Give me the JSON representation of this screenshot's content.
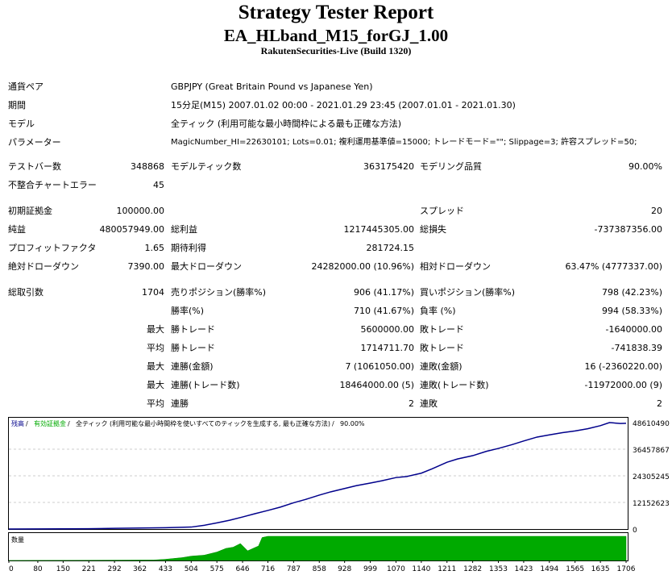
{
  "header": {
    "title": "Strategy Tester Report",
    "ea_name": "EA_HLband_M15_forGJ_1.00",
    "server": "RakutenSecurities-Live (Build 1320)"
  },
  "settings": {
    "symbol_label": "通貨ペア",
    "symbol_value": "GBPJPY (Great Britain Pound vs Japanese Yen)",
    "period_label": "期間",
    "period_value": "15分足(M15) 2007.01.02 00:00 - 2021.01.29 23:45 (2007.01.01 - 2021.01.30)",
    "model_label": "モデル",
    "model_value": "全ティック (利用可能な最小時間枠による最も正確な方法)",
    "params_label": "パラメーター",
    "params_value": "MagicNumber_HI=22630101; Lots=0.01; 複利運用基準値=15000; トレードモード=\"\"; Slippage=3; 許容スプレッド=50;"
  },
  "quality": {
    "bars_label": "テストバー数",
    "bars_value": "348868",
    "ticks_label": "モデルティック数",
    "ticks_value": "363175420",
    "quality_label": "モデリング品質",
    "quality_value": "90.00%",
    "errors_label": "不整合チャートエラー",
    "errors_value": "45"
  },
  "results": {
    "deposit_label": "初期証拠金",
    "deposit_value": "100000.00",
    "spread_label": "スプレッド",
    "spread_value": "20",
    "net_label": "純益",
    "net_value": "480057949.00",
    "gross_profit_label": "総利益",
    "gross_profit_value": "1217445305.00",
    "gross_loss_label": "総損失",
    "gross_loss_value": "-737387356.00",
    "pf_label": "プロフィットファクタ",
    "pf_value": "1.65",
    "expected_label": "期待利得",
    "expected_value": "281724.15",
    "abs_dd_label": "絶対ドローダウン",
    "abs_dd_value": "7390.00",
    "max_dd_label": "最大ドローダウン",
    "max_dd_value": "24282000.00 (10.96%)",
    "rel_dd_label": "相対ドローダウン",
    "rel_dd_value": "63.47% (4777337.00)"
  },
  "trades": {
    "total_label": "総取引数",
    "total_value": "1704",
    "short_label": "売りポジション(勝率%)",
    "short_value": "906 (41.17%)",
    "long_label": "買いポジション(勝率%)",
    "long_value": "798 (42.23%)",
    "winrate_label": "勝率(%)",
    "winrate_value": "710 (41.67%)",
    "lossrate_label": "負率 (%)",
    "lossrate_value": "994 (58.33%)",
    "row_max": "最大",
    "row_avg": "平均",
    "largest_win_label": "勝トレード",
    "largest_win_value": "5600000.00",
    "largest_loss_label": "敗トレード",
    "largest_loss_value": "-1640000.00",
    "avg_win_label": "勝トレード",
    "avg_win_value": "1714711.70",
    "avg_loss_label": "敗トレード",
    "avg_loss_value": "-741838.39",
    "max_cons_win_money_label": "連勝(金額)",
    "max_cons_win_money_value": "7 (1061050.00)",
    "max_cons_loss_money_label": "連敗(金額)",
    "max_cons_loss_money_value": "16 (-2360220.00)",
    "max_cons_profit_label": "連勝(トレード数)",
    "max_cons_profit_value": "18464000.00 (5)",
    "max_cons_loss_label": "連敗(トレード数)",
    "max_cons_loss_value": "-11972000.00 (9)",
    "avg_cons_win_label": "連勝",
    "avg_cons_win_value": "2",
    "avg_cons_loss_label": "連敗",
    "avg_cons_loss_value": "2"
  },
  "chart_data": {
    "type": "line",
    "legend": [
      {
        "text": "残高",
        "color": "#00008b"
      },
      {
        "text": "有効証拠金",
        "color": "#00aa00"
      },
      {
        "text": "全ティック (利用可能な最小時間枠を使いすべてのティックを生成する, 最も正確な方法)",
        "color": "#000000"
      },
      {
        "text": "90.00%",
        "color": "#000000"
      }
    ],
    "volume_label": "数量",
    "y_ticks": [
      "48610490",
      "36457867",
      "24305245",
      "12152623",
      "0"
    ],
    "ylim": [
      0,
      48610490
    ],
    "x_ticks": [
      "0",
      "80",
      "150",
      "221",
      "292",
      "362",
      "433",
      "504",
      "575",
      "646",
      "716",
      "787",
      "858",
      "928",
      "999",
      "1070",
      "1140",
      "1211",
      "1282",
      "1353",
      "1423",
      "1494",
      "1565",
      "1635",
      "1706"
    ],
    "balance_series": {
      "x": [
        0,
        80,
        150,
        221,
        292,
        362,
        433,
        504,
        540,
        575,
        610,
        646,
        680,
        716,
        750,
        787,
        820,
        858,
        890,
        928,
        960,
        999,
        1030,
        1070,
        1100,
        1140,
        1170,
        1211,
        1240,
        1282,
        1320,
        1353,
        1390,
        1423,
        1460,
        1494,
        1530,
        1565,
        1600,
        1635,
        1660,
        1690,
        1706
      ],
      "y": [
        0,
        50000,
        80000,
        150000,
        300000,
        450000,
        600000,
        900000,
        1700000,
        2800000,
        4000000,
        5500000,
        7000000,
        8500000,
        10000000,
        12000000,
        13500000,
        15500000,
        17000000,
        18500000,
        19800000,
        21000000,
        22000000,
        23500000,
        24000000,
        25500000,
        27500000,
        30500000,
        32000000,
        33500000,
        35500000,
        36800000,
        38500000,
        40200000,
        42000000,
        43000000,
        44000000,
        44800000,
        45800000,
        47200000,
        48610490,
        48200000,
        48300000
      ]
    },
    "volume_series": {
      "x": [
        0,
        400,
        433,
        480,
        504,
        540,
        575,
        600,
        620,
        640,
        660,
        690,
        700,
        716,
        1706
      ],
      "y": [
        0,
        0.02,
        0.05,
        0.12,
        0.18,
        0.22,
        0.35,
        0.5,
        0.55,
        0.7,
        0.4,
        0.6,
        0.95,
        1.0,
        1.0
      ]
    }
  }
}
